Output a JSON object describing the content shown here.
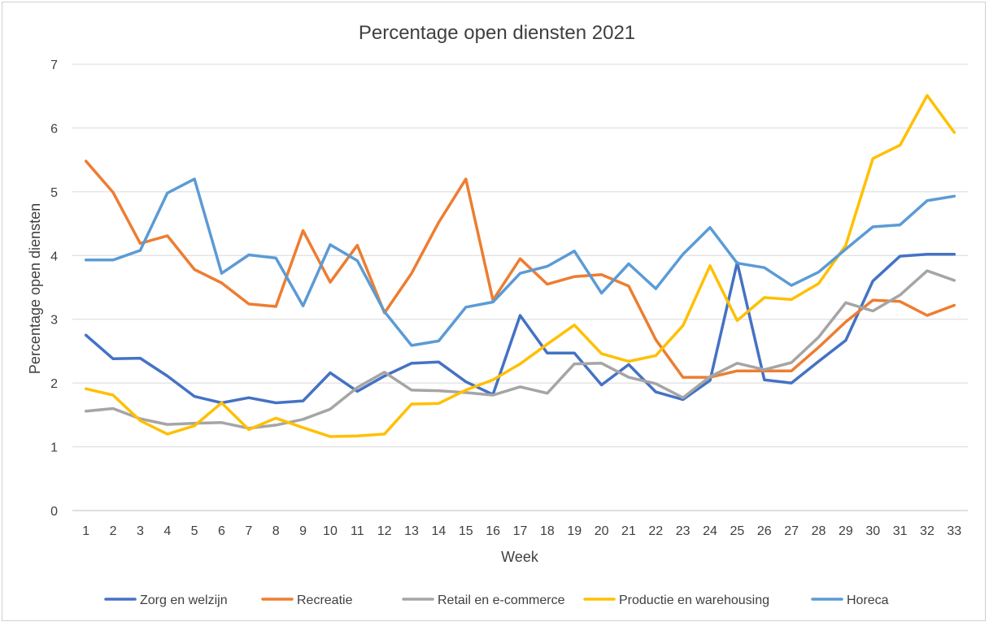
{
  "chart_data": {
    "type": "line",
    "title": "Percentage open diensten 2021",
    "xlabel": "Week",
    "ylabel": "Percentage open diensten",
    "ylim": [
      0,
      7
    ],
    "yticks": [
      0,
      1,
      2,
      3,
      4,
      5,
      6,
      7
    ],
    "grid": true,
    "legend_position": "bottom",
    "x": [
      "1",
      "2",
      "3",
      "4",
      "5",
      "6",
      "7",
      "8",
      "9",
      "10",
      "11",
      "12",
      "13",
      "14",
      "15",
      "16",
      "17",
      "18",
      "19",
      "20",
      "21",
      "22",
      "23",
      "24",
      "25",
      "26",
      "27",
      "28",
      "29",
      "30",
      "31",
      "32",
      "33"
    ],
    "series": [
      {
        "name": "Zorg en welzijn",
        "color": "#4472C4",
        "values": [
          2.75,
          2.38,
          2.39,
          2.11,
          1.79,
          1.69,
          1.77,
          1.69,
          1.72,
          2.16,
          1.87,
          2.11,
          2.31,
          2.33,
          2.02,
          1.82,
          3.06,
          2.47,
          2.47,
          1.97,
          2.29,
          1.86,
          1.74,
          2.04,
          3.89,
          2.05,
          2.0,
          2.34,
          2.67,
          3.6,
          3.99,
          4.02,
          4.02
        ]
      },
      {
        "name": "Recreatie",
        "color": "#ED7D31",
        "values": [
          5.48,
          4.99,
          4.19,
          4.31,
          3.78,
          3.57,
          3.24,
          3.2,
          4.39,
          3.58,
          4.16,
          3.1,
          3.72,
          4.52,
          5.2,
          3.3,
          3.95,
          3.55,
          3.67,
          3.7,
          3.52,
          2.68,
          2.09,
          2.09,
          2.19,
          2.19,
          2.19,
          2.56,
          2.96,
          3.3,
          3.28,
          3.06,
          3.22
        ]
      },
      {
        "name": "Retail en e-commerce",
        "color": "#A5A5A5",
        "values": [
          1.56,
          1.6,
          1.44,
          1.35,
          1.37,
          1.38,
          1.29,
          1.34,
          1.43,
          1.59,
          1.93,
          2.17,
          1.89,
          1.88,
          1.85,
          1.81,
          1.94,
          1.84,
          2.3,
          2.31,
          2.09,
          1.99,
          1.77,
          2.1,
          2.31,
          2.21,
          2.32,
          2.72,
          3.26,
          3.13,
          3.38,
          3.76,
          3.61
        ]
      },
      {
        "name": "Productie en warehousing",
        "color": "#FFC000",
        "values": [
          1.91,
          1.81,
          1.41,
          1.2,
          1.33,
          1.69,
          1.27,
          1.45,
          1.3,
          1.16,
          1.17,
          1.2,
          1.67,
          1.68,
          1.89,
          2.05,
          2.3,
          2.61,
          2.91,
          2.46,
          2.34,
          2.43,
          2.9,
          3.84,
          2.98,
          3.34,
          3.31,
          3.56,
          4.16,
          5.52,
          5.73,
          6.51,
          5.93
        ]
      },
      {
        "name": "Horeca",
        "color": "#5B9BD5",
        "values": [
          3.93,
          3.93,
          4.08,
          4.98,
          5.2,
          3.72,
          4.01,
          3.96,
          3.21,
          4.17,
          3.92,
          3.12,
          2.59,
          2.66,
          3.19,
          3.27,
          3.72,
          3.83,
          4.07,
          3.41,
          3.87,
          3.48,
          4.02,
          4.44,
          3.88,
          3.81,
          3.53,
          3.74,
          4.1,
          4.45,
          4.48,
          4.86,
          4.93
        ]
      }
    ]
  }
}
